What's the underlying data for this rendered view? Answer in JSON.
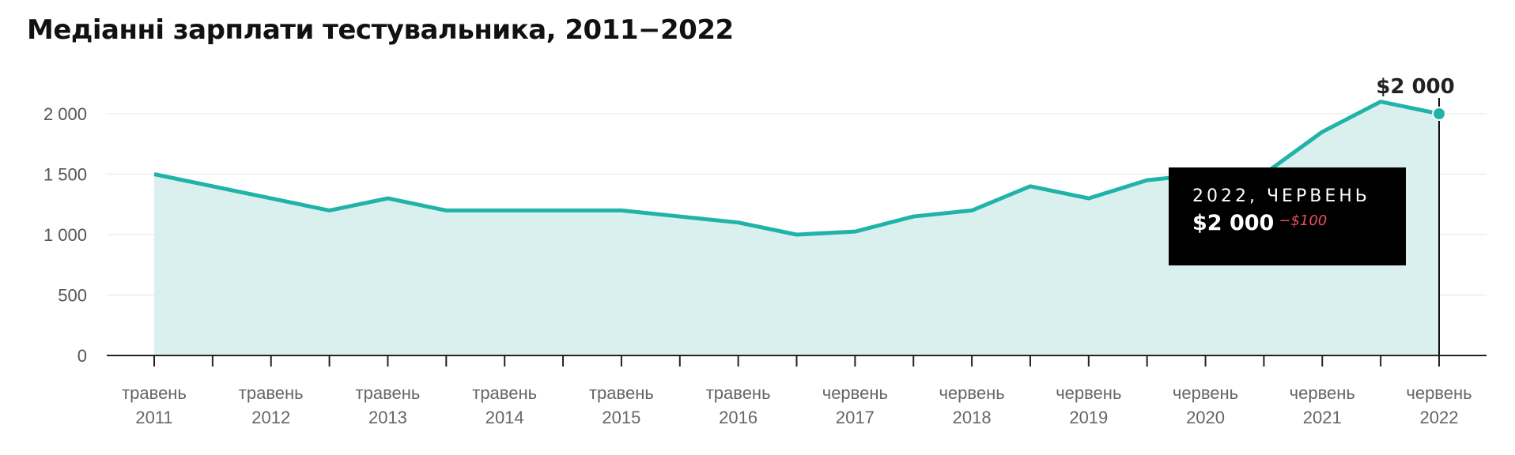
{
  "page": {
    "title": "Медіанні зарплати тестувальника, 2011−2022"
  },
  "colors": {
    "line": "#21b3a9",
    "area": "#d9f0ee",
    "axis": "#222222",
    "grid": "#eeeeee"
  },
  "tooltip": {
    "date": "2022, ЧЕРВЕНЬ",
    "value": "$2 000",
    "delta": "−$100"
  },
  "chart_data": {
    "type": "area",
    "title": "Медіанні зарплати тестувальника, 2011−2022",
    "xlabel": "",
    "ylabel": "",
    "ylim": [
      0,
      2000
    ],
    "grid": true,
    "y_ticks": [
      {
        "value": 0,
        "label": "0"
      },
      {
        "value": 500,
        "label": "500"
      },
      {
        "value": 1000,
        "label": "1 000"
      },
      {
        "value": 1500,
        "label": "1 500"
      },
      {
        "value": 2000,
        "label": "2 000"
      }
    ],
    "x_labels": [
      {
        "month": "травень",
        "year": "2011"
      },
      {
        "month": "травень",
        "year": "2012"
      },
      {
        "month": "травень",
        "year": "2013"
      },
      {
        "month": "травень",
        "year": "2014"
      },
      {
        "month": "травень",
        "year": "2015"
      },
      {
        "month": "травень",
        "year": "2016"
      },
      {
        "month": "червень",
        "year": "2017"
      },
      {
        "month": "червень",
        "year": "2018"
      },
      {
        "month": "червень",
        "year": "2019"
      },
      {
        "month": "червень",
        "year": "2020"
      },
      {
        "month": "червень",
        "year": "2021"
      },
      {
        "month": "червень",
        "year": "2022"
      }
    ],
    "values": [
      1500,
      1400,
      1300,
      1200,
      1300,
      1200,
      1200,
      1200,
      1200,
      1150,
      1100,
      1000,
      1025,
      1150,
      1200,
      1400,
      1300,
      1450,
      1500,
      1500,
      1850,
      2100,
      2000
    ],
    "highlight": {
      "index": 22,
      "label": "$2 000"
    }
  }
}
